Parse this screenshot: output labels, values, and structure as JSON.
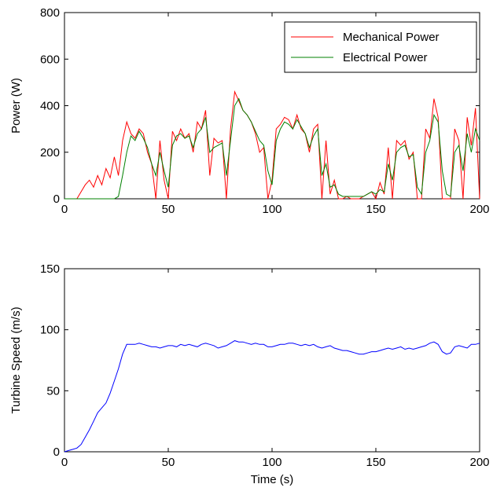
{
  "chart_data": [
    {
      "type": "line",
      "ylabel": "Power (W)",
      "xlim": [
        0,
        200
      ],
      "xticks": [
        0,
        50,
        100,
        150,
        200
      ],
      "ylim": [
        0,
        800
      ],
      "yticks": [
        0,
        200,
        400,
        600,
        800
      ],
      "legend": "upper right",
      "x": [
        0,
        2,
        4,
        6,
        8,
        10,
        12,
        14,
        16,
        18,
        20,
        22,
        24,
        26,
        28,
        30,
        32,
        34,
        36,
        38,
        40,
        42,
        44,
        46,
        48,
        50,
        52,
        54,
        56,
        58,
        60,
        62,
        64,
        66,
        68,
        70,
        72,
        74,
        76,
        78,
        80,
        82,
        84,
        86,
        88,
        90,
        92,
        94,
        96,
        98,
        100,
        102,
        104,
        106,
        108,
        110,
        112,
        114,
        116,
        118,
        120,
        122,
        124,
        126,
        128,
        130,
        132,
        134,
        136,
        138,
        140,
        142,
        144,
        146,
        148,
        150,
        152,
        154,
        156,
        158,
        160,
        162,
        164,
        166,
        168,
        170,
        172,
        174,
        176,
        178,
        180,
        182,
        184,
        186,
        188,
        190,
        192,
        194,
        196,
        198,
        200
      ],
      "series": [
        {
          "name": "Mechanical Power",
          "color": "#ff0000",
          "values": [
            0,
            0,
            0,
            0,
            30,
            60,
            80,
            50,
            100,
            60,
            130,
            90,
            180,
            100,
            250,
            330,
            280,
            260,
            300,
            280,
            200,
            150,
            0,
            250,
            80,
            0,
            290,
            250,
            300,
            260,
            280,
            200,
            330,
            300,
            380,
            100,
            260,
            240,
            250,
            0,
            300,
            460,
            420,
            380,
            360,
            330,
            280,
            200,
            220,
            0,
            80,
            300,
            320,
            350,
            340,
            300,
            360,
            300,
            280,
            200,
            300,
            320,
            0,
            250,
            20,
            80,
            0,
            0,
            10,
            0,
            0,
            0,
            10,
            20,
            30,
            0,
            70,
            20,
            220,
            0,
            250,
            230,
            250,
            170,
            200,
            0,
            0,
            300,
            260,
            430,
            350,
            0,
            0,
            0,
            300,
            250,
            0,
            350,
            230,
            390,
            0
          ]
        },
        {
          "name": "Electrical Power",
          "color": "#008000",
          "values": [
            0,
            0,
            0,
            0,
            0,
            0,
            0,
            0,
            0,
            0,
            0,
            0,
            0,
            10,
            100,
            200,
            270,
            250,
            290,
            260,
            220,
            150,
            100,
            200,
            120,
            50,
            230,
            270,
            280,
            260,
            270,
            220,
            280,
            300,
            350,
            200,
            220,
            230,
            240,
            100,
            250,
            400,
            430,
            380,
            360,
            330,
            290,
            250,
            230,
            120,
            60,
            250,
            300,
            330,
            320,
            300,
            340,
            310,
            280,
            220,
            270,
            300,
            100,
            150,
            50,
            60,
            20,
            10,
            10,
            10,
            10,
            10,
            10,
            20,
            30,
            20,
            40,
            30,
            150,
            80,
            200,
            220,
            230,
            180,
            190,
            50,
            20,
            200,
            250,
            360,
            330,
            120,
            20,
            10,
            200,
            230,
            120,
            280,
            200,
            300,
            250
          ]
        }
      ]
    },
    {
      "type": "line",
      "ylabel": "Turbine Speed (m/s)",
      "xlabel": "Time (s)",
      "xlim": [
        0,
        200
      ],
      "xticks": [
        0,
        50,
        100,
        150,
        200
      ],
      "ylim": [
        0,
        150
      ],
      "yticks": [
        0,
        50,
        100,
        150
      ],
      "x": [
        0,
        2,
        4,
        6,
        8,
        10,
        12,
        14,
        16,
        18,
        20,
        22,
        24,
        26,
        28,
        30,
        32,
        34,
        36,
        38,
        40,
        42,
        44,
        46,
        48,
        50,
        52,
        54,
        56,
        58,
        60,
        62,
        64,
        66,
        68,
        70,
        72,
        74,
        76,
        78,
        80,
        82,
        84,
        86,
        88,
        90,
        92,
        94,
        96,
        98,
        100,
        102,
        104,
        106,
        108,
        110,
        112,
        114,
        116,
        118,
        120,
        122,
        124,
        126,
        128,
        130,
        132,
        134,
        136,
        138,
        140,
        142,
        144,
        146,
        148,
        150,
        152,
        154,
        156,
        158,
        160,
        162,
        164,
        166,
        168,
        170,
        172,
        174,
        176,
        178,
        180,
        182,
        184,
        186,
        188,
        190,
        192,
        194,
        196,
        198,
        200
      ],
      "series": [
        {
          "color": "#0000ff",
          "values": [
            0,
            1,
            2,
            3,
            6,
            12,
            18,
            25,
            32,
            36,
            40,
            48,
            58,
            68,
            80,
            88,
            88,
            88,
            89,
            88,
            87,
            86,
            86,
            85,
            86,
            87,
            87,
            86,
            88,
            87,
            88,
            87,
            86,
            88,
            89,
            88,
            87,
            85,
            86,
            87,
            89,
            91,
            90,
            90,
            89,
            88,
            89,
            88,
            88,
            86,
            86,
            87,
            88,
            88,
            89,
            89,
            88,
            87,
            88,
            87,
            88,
            86,
            85,
            86,
            87,
            85,
            84,
            83,
            83,
            82,
            81,
            80,
            80,
            81,
            82,
            82,
            83,
            84,
            85,
            84,
            85,
            86,
            84,
            85,
            84,
            85,
            86,
            87,
            89,
            90,
            88,
            82,
            80,
            81,
            86,
            87,
            86,
            85,
            88,
            88,
            89
          ]
        }
      ]
    }
  ]
}
